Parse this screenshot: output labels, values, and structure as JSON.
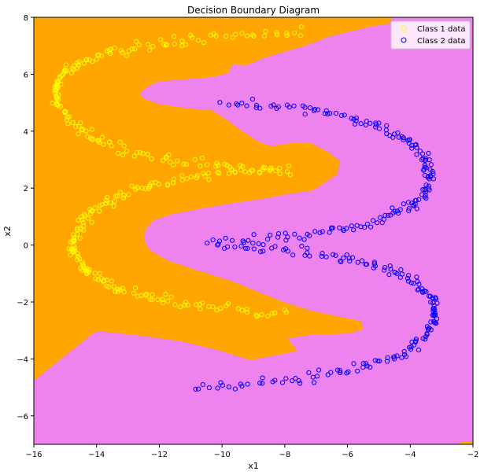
{
  "chart_data": {
    "type": "scatter",
    "title": "Decision Boundary Diagram",
    "xlabel": "x1",
    "ylabel": "x2",
    "xlim": [
      -16,
      -2
    ],
    "ylim": [
      -7,
      8
    ],
    "x_ticks": [
      -16,
      -14,
      -12,
      -10,
      -8,
      -6,
      -4,
      -2
    ],
    "y_ticks": [
      -6,
      -4,
      -2,
      0,
      2,
      4,
      6,
      8
    ],
    "grid": false,
    "legend_position": "top-right",
    "region_colors": {
      "class_1": "#ffa500",
      "class_2": "#ee82ee"
    },
    "series": [
      {
        "name": "Class 1 data",
        "marker": "open-circle",
        "color": "#ffff00",
        "arms": [
          {
            "tip": [
              -15.3,
              5.4
            ],
            "upper_end": [
              -7.3,
              7.5
            ],
            "lower_end": [
              -7.8,
              2.6
            ]
          },
          {
            "tip": [
              -14.7,
              0.0
            ],
            "upper_end": [
              -8.0,
              2.7
            ],
            "lower_end": [
              -7.9,
              -2.4
            ]
          }
        ]
      },
      {
        "name": "Class 2 data",
        "marker": "open-circle",
        "color": "#0000ff",
        "arms": [
          {
            "tip": [
              -3.4,
              2.4
            ],
            "upper_end": [
              -10.0,
              5.0
            ],
            "lower_end": [
              -10.3,
              0.1
            ]
          },
          {
            "tip": [
              -3.2,
              -2.4
            ],
            "upper_end": [
              -10.3,
              0.0
            ],
            "lower_end": [
              -11.0,
              -5.0
            ]
          }
        ]
      }
    ],
    "legend": [
      "Class 1 data",
      "Class 2 data"
    ]
  }
}
